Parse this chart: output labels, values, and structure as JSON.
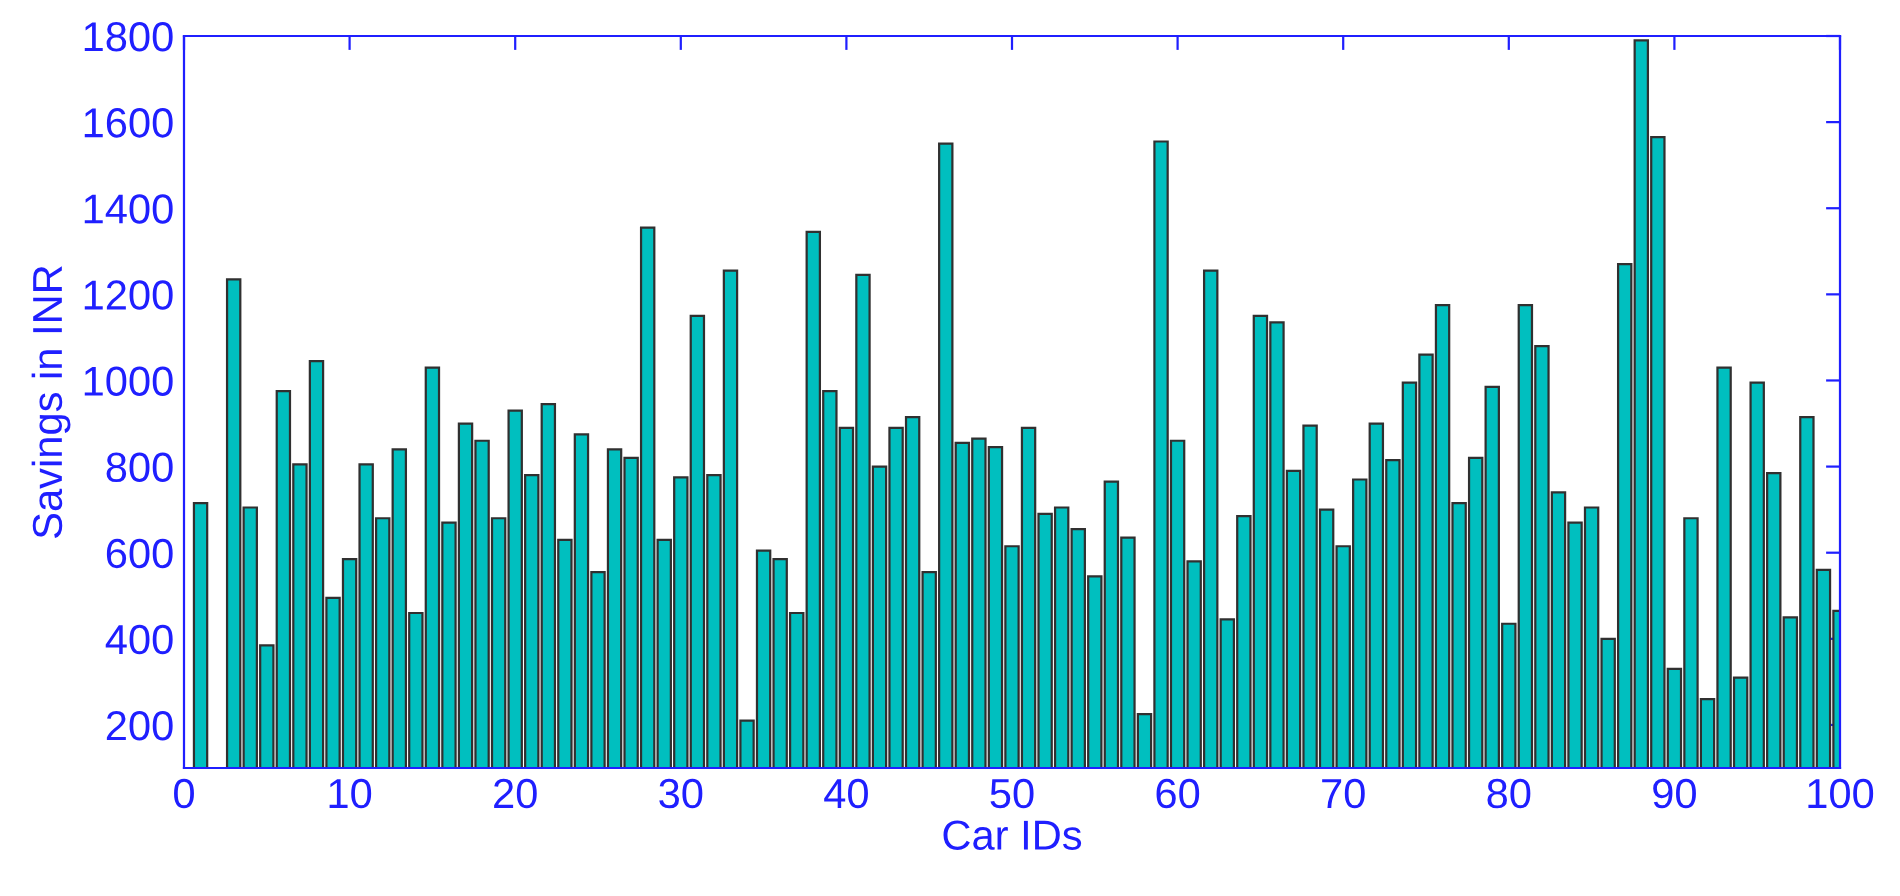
{
  "chart_data": {
    "type": "bar",
    "xlabel": "Car IDs",
    "ylabel": "Savings in INR",
    "color": "#00bfbf",
    "x": [
      1,
      2,
      3,
      4,
      5,
      6,
      7,
      8,
      9,
      10,
      11,
      12,
      13,
      14,
      15,
      16,
      17,
      18,
      19,
      20,
      21,
      22,
      23,
      24,
      25,
      26,
      27,
      28,
      29,
      30,
      31,
      32,
      33,
      34,
      35,
      36,
      37,
      38,
      39,
      40,
      41,
      42,
      43,
      44,
      45,
      46,
      47,
      48,
      49,
      50,
      51,
      52,
      53,
      54,
      55,
      56,
      57,
      58,
      59,
      60,
      61,
      62,
      63,
      64,
      65,
      66,
      67,
      68,
      69,
      70,
      71,
      72,
      73,
      74,
      75,
      76,
      77,
      78,
      79,
      80,
      81,
      82,
      83,
      84,
      85,
      86,
      87,
      88,
      89,
      90,
      91,
      92,
      93,
      94,
      95,
      96,
      97,
      98,
      99,
      100
    ],
    "values": [
      715,
      null,
      1235,
      705,
      385,
      975,
      805,
      1045,
      495,
      585,
      805,
      680,
      840,
      460,
      1030,
      670,
      900,
      860,
      680,
      930,
      780,
      945,
      630,
      875,
      555,
      840,
      820,
      1355,
      630,
      775,
      1150,
      780,
      1255,
      210,
      605,
      585,
      460,
      1345,
      975,
      890,
      1245,
      800,
      890,
      915,
      555,
      1550,
      855,
      865,
      845,
      615,
      890,
      690,
      705,
      655,
      545,
      765,
      635,
      225,
      1555,
      860,
      580,
      1255,
      445,
      685,
      1150,
      1135,
      790,
      895,
      700,
      615,
      770,
      900,
      815,
      995,
      1060,
      1175,
      715,
      820,
      985,
      435,
      1175,
      1080,
      740,
      670,
      705,
      400,
      1270,
      1790,
      1565,
      330,
      680,
      260,
      1030,
      310,
      995,
      785,
      450,
      915,
      560,
      465
    ],
    "xlim": [
      0,
      100
    ],
    "xticks": [
      0,
      10,
      20,
      30,
      40,
      50,
      60,
      70,
      80,
      90,
      100
    ],
    "ylim": [
      100,
      1800
    ],
    "yticks": [
      200,
      400,
      600,
      800,
      1000,
      1200,
      1400,
      1600,
      1800
    ],
    "grid": false,
    "legend": false
  }
}
